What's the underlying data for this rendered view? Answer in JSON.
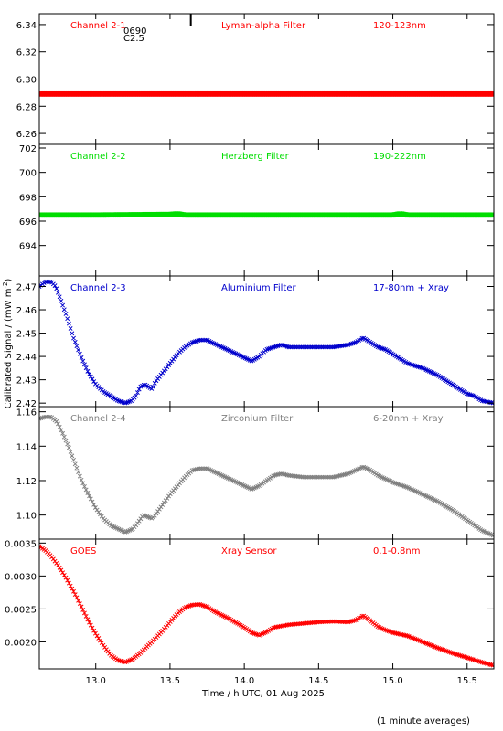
{
  "footer_note": "(1 minute averages)",
  "chart_data": {
    "type": "scatter",
    "xlabel": "Time / h UTC, 01 Aug 2025",
    "ylabel": "Calibrated Signal / (mW m",
    "ylabel_exponent": "-2",
    "ylabel_suffix": ")",
    "xlim": [
      12.62,
      15.68
    ],
    "xticks": [
      13.0,
      13.5,
      14.0,
      14.5,
      15.0,
      15.5
    ],
    "xtick_labels": [
      "13.0",
      "13.5",
      "14.0",
      "14.5",
      "15.0",
      "15.5"
    ],
    "marker": "x",
    "panels": [
      {
        "channel": "Channel 2-1",
        "filter": "Lyman-alpha Filter",
        "band": "120-123nm",
        "color": "#ff0000",
        "ylim": [
          6.252,
          6.348
        ],
        "yticks": [
          6.26,
          6.28,
          6.3,
          6.32,
          6.34
        ],
        "ytick_labels": [
          "6.26",
          "6.28",
          "6.30",
          "6.32",
          "6.34"
        ],
        "annotations": [
          "0690",
          "C2.5"
        ],
        "marker_x": 13.64,
        "points": [
          [
            12.62,
            6.289
          ],
          [
            15.68,
            6.289
          ]
        ]
      },
      {
        "channel": "Channel 2-2",
        "filter": "Herzberg Filter",
        "band": "190-222nm",
        "color": "#00dd00",
        "ylim": [
          691.5,
          702.3
        ],
        "yticks": [
          694,
          696,
          698,
          700,
          702
        ],
        "ytick_labels": [
          "694",
          "696",
          "698",
          "700",
          "702"
        ],
        "points": [
          [
            12.62,
            696.5
          ],
          [
            13.0,
            696.5
          ],
          [
            13.5,
            696.55
          ],
          [
            13.55,
            696.6
          ],
          [
            13.6,
            696.5
          ],
          [
            14.0,
            696.5
          ],
          [
            14.5,
            696.5
          ],
          [
            15.0,
            696.5
          ],
          [
            15.05,
            696.6
          ],
          [
            15.1,
            696.5
          ],
          [
            15.68,
            696.5
          ]
        ]
      },
      {
        "channel": "Channel 2-3",
        "filter": "Aluminium Filter",
        "band": "17-80nm + Xray",
        "color": "#0000cc",
        "ylim": [
          2.4185,
          2.4745
        ],
        "yticks": [
          2.42,
          2.43,
          2.44,
          2.45,
          2.46,
          2.47
        ],
        "ytick_labels": [
          "2.42",
          "2.43",
          "2.44",
          "2.45",
          "2.46",
          "2.47"
        ],
        "points": [
          [
            12.62,
            2.47
          ],
          [
            12.66,
            2.472
          ],
          [
            12.7,
            2.472
          ],
          [
            12.73,
            2.47
          ],
          [
            12.76,
            2.465
          ],
          [
            12.8,
            2.458
          ],
          [
            12.85,
            2.448
          ],
          [
            12.9,
            2.44
          ],
          [
            12.95,
            2.433
          ],
          [
            13.0,
            2.428
          ],
          [
            13.05,
            2.425
          ],
          [
            13.1,
            2.423
          ],
          [
            13.15,
            2.421
          ],
          [
            13.2,
            2.42
          ],
          [
            13.24,
            2.421
          ],
          [
            13.27,
            2.423
          ],
          [
            13.3,
            2.427
          ],
          [
            13.33,
            2.428
          ],
          [
            13.38,
            2.426
          ],
          [
            13.4,
            2.429
          ],
          [
            13.45,
            2.433
          ],
          [
            13.5,
            2.437
          ],
          [
            13.55,
            2.441
          ],
          [
            13.6,
            2.444
          ],
          [
            13.65,
            2.446
          ],
          [
            13.7,
            2.447
          ],
          [
            13.75,
            2.447
          ],
          [
            13.78,
            2.446
          ],
          [
            13.85,
            2.444
          ],
          [
            13.95,
            2.441
          ],
          [
            14.05,
            2.438
          ],
          [
            14.1,
            2.44
          ],
          [
            14.15,
            2.443
          ],
          [
            14.2,
            2.444
          ],
          [
            14.25,
            2.445
          ],
          [
            14.3,
            2.444
          ],
          [
            14.4,
            2.444
          ],
          [
            14.5,
            2.444
          ],
          [
            14.6,
            2.444
          ],
          [
            14.7,
            2.445
          ],
          [
            14.75,
            2.446
          ],
          [
            14.8,
            2.448
          ],
          [
            14.85,
            2.446
          ],
          [
            14.9,
            2.444
          ],
          [
            14.95,
            2.443
          ],
          [
            15.0,
            2.441
          ],
          [
            15.05,
            2.439
          ],
          [
            15.1,
            2.437
          ],
          [
            15.2,
            2.435
          ],
          [
            15.3,
            2.432
          ],
          [
            15.4,
            2.428
          ],
          [
            15.45,
            2.426
          ],
          [
            15.5,
            2.424
          ],
          [
            15.55,
            2.423
          ],
          [
            15.6,
            2.421
          ],
          [
            15.68,
            2.42
          ]
        ]
      },
      {
        "channel": "Channel 2-4",
        "filter": "Zirconium Filter",
        "band": "6-20nm + Xray",
        "color": "#808080",
        "ylim": [
          1.086,
          1.163
        ],
        "yticks": [
          1.1,
          1.12,
          1.14,
          1.16
        ],
        "ytick_labels": [
          "1.10",
          "1.12",
          "1.14",
          "1.16"
        ],
        "points": [
          [
            12.62,
            1.156
          ],
          [
            12.66,
            1.157
          ],
          [
            12.7,
            1.157
          ],
          [
            12.74,
            1.154
          ],
          [
            12.78,
            1.147
          ],
          [
            12.82,
            1.139
          ],
          [
            12.86,
            1.13
          ],
          [
            12.9,
            1.121
          ],
          [
            12.95,
            1.112
          ],
          [
            13.0,
            1.104
          ],
          [
            13.05,
            1.098
          ],
          [
            13.1,
            1.094
          ],
          [
            13.15,
            1.092
          ],
          [
            13.2,
            1.09
          ],
          [
            13.25,
            1.092
          ],
          [
            13.28,
            1.095
          ],
          [
            13.32,
            1.1
          ],
          [
            13.38,
            1.098
          ],
          [
            13.4,
            1.1
          ],
          [
            13.45,
            1.106
          ],
          [
            13.5,
            1.112
          ],
          [
            13.55,
            1.117
          ],
          [
            13.6,
            1.122
          ],
          [
            13.65,
            1.126
          ],
          [
            13.7,
            1.127
          ],
          [
            13.75,
            1.127
          ],
          [
            13.8,
            1.125
          ],
          [
            13.9,
            1.121
          ],
          [
            14.0,
            1.117
          ],
          [
            14.05,
            1.115
          ],
          [
            14.1,
            1.117
          ],
          [
            14.15,
            1.12
          ],
          [
            14.2,
            1.123
          ],
          [
            14.25,
            1.124
          ],
          [
            14.3,
            1.123
          ],
          [
            14.4,
            1.122
          ],
          [
            14.5,
            1.122
          ],
          [
            14.6,
            1.122
          ],
          [
            14.7,
            1.124
          ],
          [
            14.75,
            1.126
          ],
          [
            14.8,
            1.128
          ],
          [
            14.85,
            1.126
          ],
          [
            14.9,
            1.123
          ],
          [
            14.95,
            1.121
          ],
          [
            15.0,
            1.119
          ],
          [
            15.1,
            1.116
          ],
          [
            15.2,
            1.112
          ],
          [
            15.3,
            1.108
          ],
          [
            15.4,
            1.103
          ],
          [
            15.45,
            1.1
          ],
          [
            15.5,
            1.097
          ],
          [
            15.55,
            1.094
          ],
          [
            15.6,
            1.091
          ],
          [
            15.68,
            1.088
          ]
        ]
      },
      {
        "channel": "GOES",
        "filter": "Xray Sensor",
        "band": "0.1-0.8nm",
        "color": "#ff0000",
        "ylim": [
          0.00159,
          0.00356
        ],
        "yticks": [
          0.002,
          0.0025,
          0.003,
          0.0035
        ],
        "ytick_labels": [
          "0.0020",
          "0.0025",
          "0.0030",
          "0.0035"
        ],
        "points": [
          [
            12.62,
            0.00345
          ],
          [
            12.66,
            0.00339
          ],
          [
            12.7,
            0.0033
          ],
          [
            12.75,
            0.00315
          ],
          [
            12.8,
            0.00297
          ],
          [
            12.85,
            0.00277
          ],
          [
            12.9,
            0.00255
          ],
          [
            12.95,
            0.00232
          ],
          [
            13.0,
            0.00212
          ],
          [
            13.05,
            0.00195
          ],
          [
            13.1,
            0.0018
          ],
          [
            13.15,
            0.00172
          ],
          [
            13.2,
            0.00169
          ],
          [
            13.25,
            0.00174
          ],
          [
            13.3,
            0.00183
          ],
          [
            13.35,
            0.00194
          ],
          [
            13.4,
            0.00205
          ],
          [
            13.45,
            0.00217
          ],
          [
            13.5,
            0.0023
          ],
          [
            13.55,
            0.00243
          ],
          [
            13.6,
            0.00252
          ],
          [
            13.65,
            0.00256
          ],
          [
            13.7,
            0.00257
          ],
          [
            13.75,
            0.00253
          ],
          [
            13.8,
            0.00246
          ],
          [
            13.9,
            0.00235
          ],
          [
            14.0,
            0.00222
          ],
          [
            14.05,
            0.00214
          ],
          [
            14.1,
            0.0021
          ],
          [
            14.15,
            0.00215
          ],
          [
            14.2,
            0.00222
          ],
          [
            14.3,
            0.00226
          ],
          [
            14.4,
            0.00228
          ],
          [
            14.5,
            0.0023
          ],
          [
            14.6,
            0.00231
          ],
          [
            14.7,
            0.0023
          ],
          [
            14.75,
            0.00233
          ],
          [
            14.8,
            0.0024
          ],
          [
            14.85,
            0.00232
          ],
          [
            14.9,
            0.00223
          ],
          [
            14.95,
            0.00218
          ],
          [
            15.0,
            0.00214
          ],
          [
            15.1,
            0.00209
          ],
          [
            15.2,
            0.002
          ],
          [
            15.3,
            0.00191
          ],
          [
            15.4,
            0.00183
          ],
          [
            15.5,
            0.00176
          ],
          [
            15.6,
            0.00169
          ],
          [
            15.68,
            0.00164
          ]
        ]
      }
    ]
  }
}
